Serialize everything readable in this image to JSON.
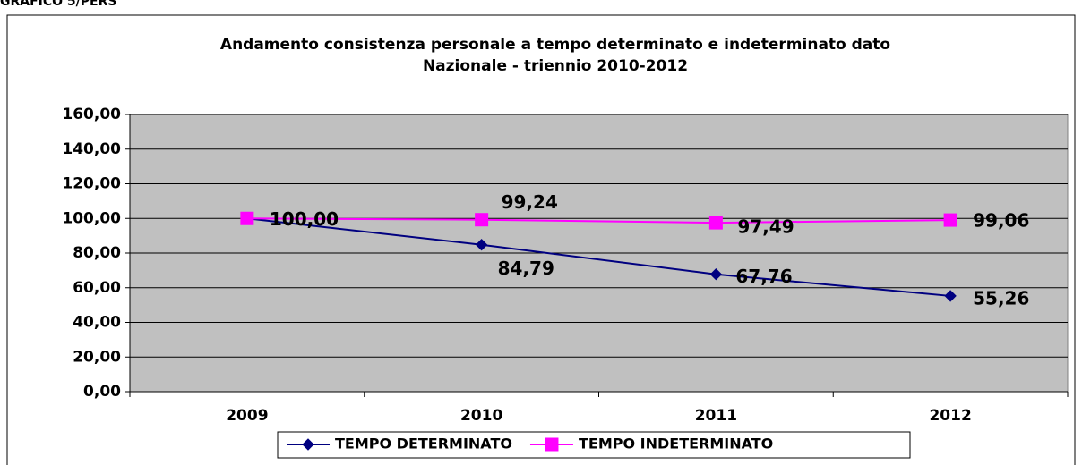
{
  "chart_data": {
    "type": "line",
    "caption": "GRAFICO 5/PERS",
    "title": [
      "Andamento consistenza personale a tempo determinato e indeterminato dato",
      "Nazionale - triennio 2010-2012"
    ],
    "categories": [
      "2009",
      "2010",
      "2011",
      "2012"
    ],
    "series": [
      {
        "name": "TEMPO DETERMINATO",
        "color": "#000080",
        "marker": "diamond",
        "values": [
          100.0,
          84.79,
          67.76,
          55.26
        ],
        "value_labels": [
          "100,00",
          "84,79",
          "67,76",
          "55,26"
        ]
      },
      {
        "name": "TEMPO INDETERMINATO",
        "color": "#ff00ff",
        "marker": "square",
        "values": [
          100.0,
          99.24,
          97.49,
          99.06
        ],
        "value_labels": [
          "100,00",
          "99,24",
          "97,49",
          "99,06"
        ]
      }
    ],
    "ylim": [
      0,
      160
    ],
    "yticks": [
      {
        "value": 0,
        "label": "0,00"
      },
      {
        "value": 20,
        "label": "20,00"
      },
      {
        "value": 40,
        "label": "40,00"
      },
      {
        "value": 60,
        "label": "60,00"
      },
      {
        "value": 80,
        "label": "80,00"
      },
      {
        "value": 100,
        "label": "100,00"
      },
      {
        "value": 120,
        "label": "120,00"
      },
      {
        "value": 140,
        "label": "140,00"
      },
      {
        "value": 160,
        "label": "160,00"
      }
    ],
    "grid": true,
    "legend": "bottom"
  }
}
